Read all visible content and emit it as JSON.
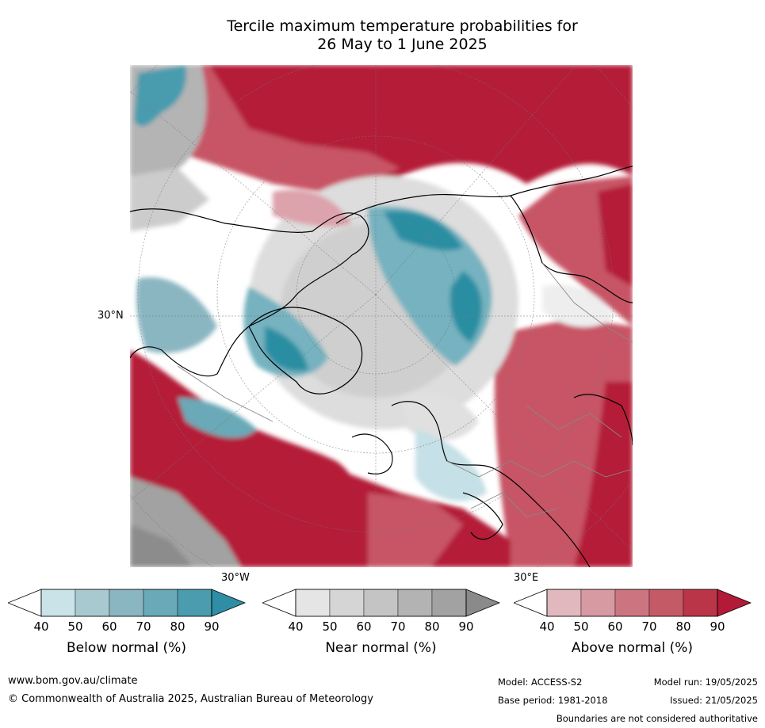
{
  "title_line1": "Tercile maximum temperature probabilities for",
  "title_line2": "26 May to 1 June 2025",
  "map": {
    "lat_label": "30°N",
    "lon_label_left": "30°W",
    "lon_label_right": "30°E",
    "colors": {
      "above_dark": "#b41c38",
      "above_mid": "#c75465",
      "above_light": "#dca3ac",
      "below_dark": "#2a8ea3",
      "below_mid": "#76b2bf",
      "below_light": "#c5e0e6",
      "near_dark": "#8c8c8c",
      "near_mid": "#b4b4b4",
      "near_light": "#e0e0e0"
    }
  },
  "legends": [
    {
      "label": "Below normal (%)",
      "ticks": [
        "40",
        "50",
        "60",
        "70",
        "80",
        "90"
      ],
      "colors": [
        "#c9e3e9",
        "#a8c9cf",
        "#8ab6c2",
        "#6aa9b7",
        "#4a9cae",
        "#2f8ea5"
      ]
    },
    {
      "label": "Near normal (%)",
      "ticks": [
        "40",
        "50",
        "60",
        "70",
        "80",
        "90"
      ],
      "colors": [
        "#e5e5e5",
        "#d5d5d5",
        "#c4c4c4",
        "#b3b3b3",
        "#a2a2a2",
        "#8a8a8a"
      ]
    },
    {
      "label": "Above normal (%)",
      "ticks": [
        "40",
        "50",
        "60",
        "70",
        "80",
        "90"
      ],
      "colors": [
        "#e1b8bd",
        "#d79aa2",
        "#cc7580",
        "#c55a67",
        "#bb3548",
        "#b31a38"
      ]
    }
  ],
  "footer": {
    "website": "www.bom.gov.au/climate",
    "copyright": "© Commonwealth of Australia 2025, Australian Bureau of Meteorology",
    "model": "Model: ACCESS-S2",
    "model_run": "Model run: 19/05/2025",
    "base_period": "Base period: 1981-2018",
    "issued": "Issued: 21/05/2025",
    "disclaimer": "Boundaries are not considered authoritative"
  }
}
